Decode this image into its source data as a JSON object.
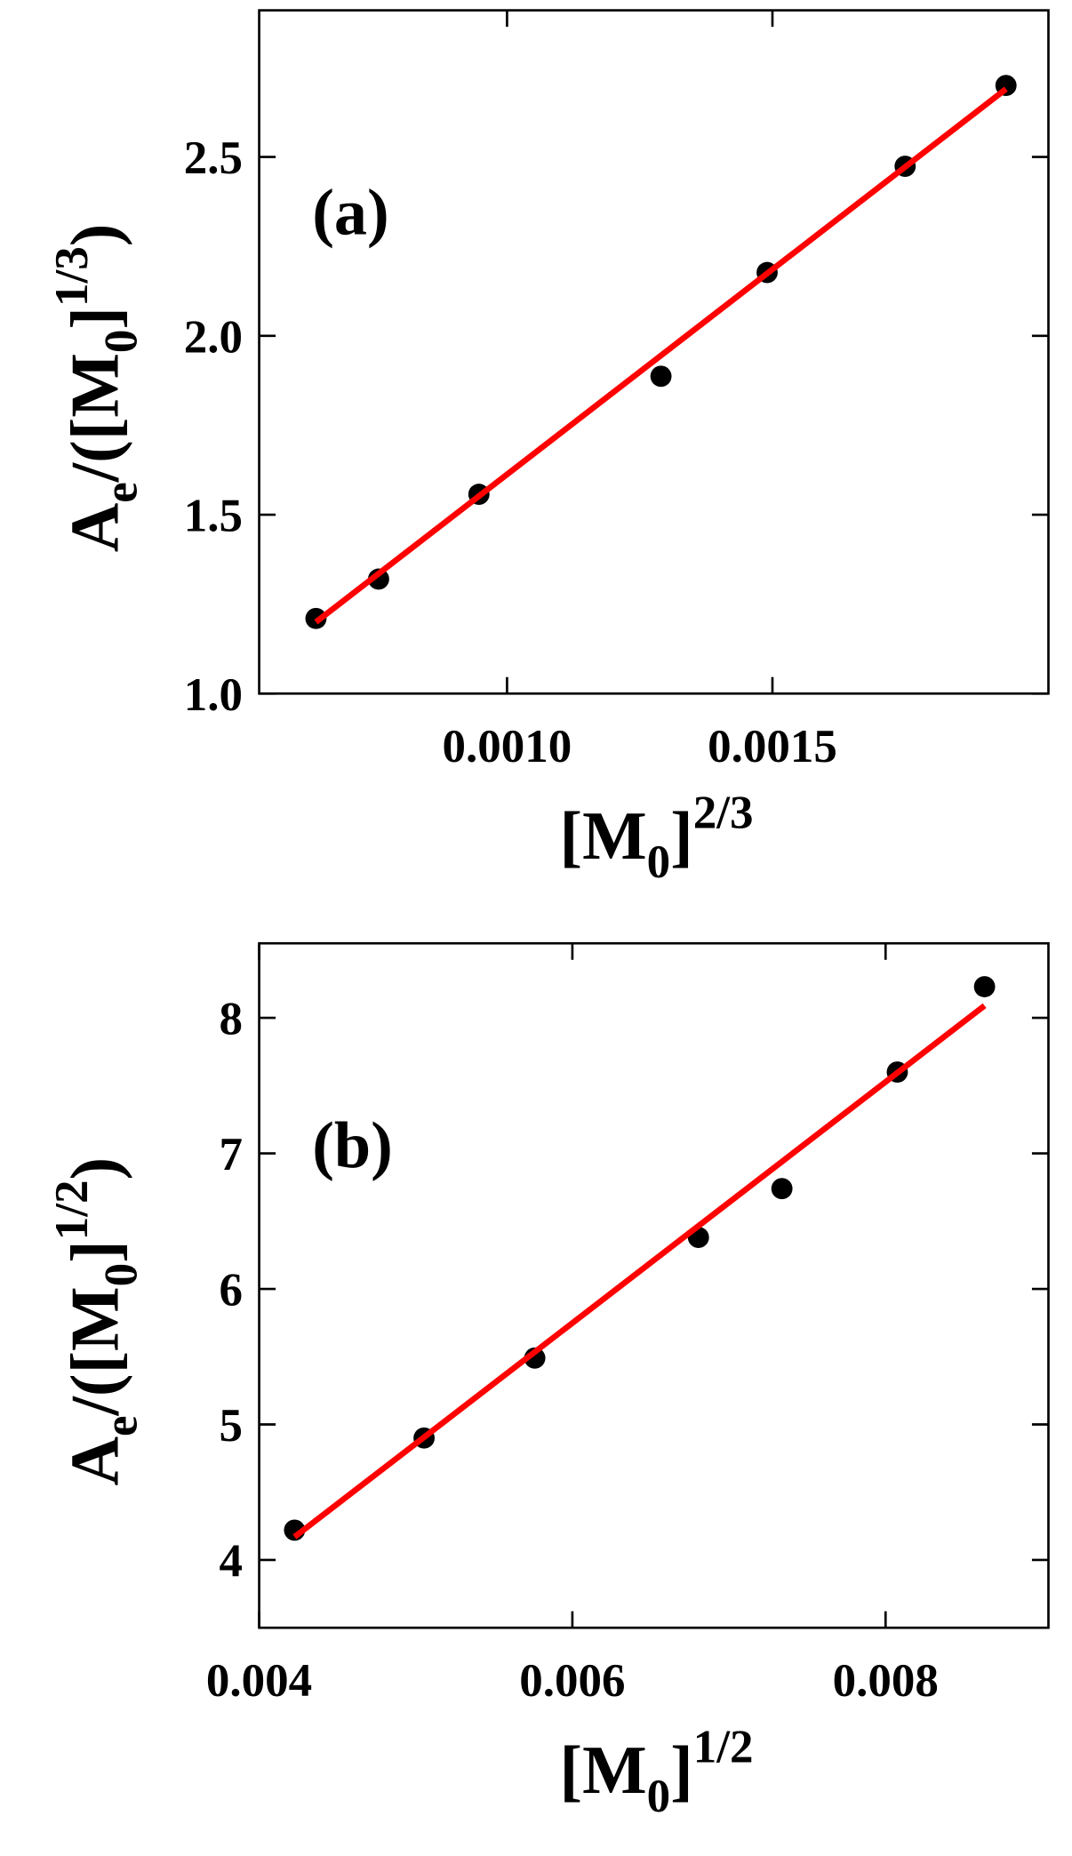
{
  "chart_data": [
    {
      "type": "scatter",
      "panel_label": "(a)",
      "xlabel": [
        "[M",
        "0",
        "]",
        "2/3"
      ],
      "ylabel": [
        "A",
        "e",
        "/([M",
        "0",
        "]",
        "1/3",
        ")"
      ],
      "xlim": [
        0.000533,
        0.00202
      ],
      "ylim": [
        1.0,
        2.91
      ],
      "xticks": [
        {
          "value": 0.001,
          "label": "0.0010"
        },
        {
          "value": 0.0015,
          "label": "0.0015"
        }
      ],
      "yticks": [
        {
          "value": 1.0,
          "label": "1.0"
        },
        {
          "value": 1.5,
          "label": "1.5"
        },
        {
          "value": 2.0,
          "label": "2.0"
        },
        {
          "value": 2.5,
          "label": "2.5"
        }
      ],
      "series": [
        {
          "kind": "points",
          "color": "#000000",
          "x": [
            0.00064,
            0.000758,
            0.000947,
            0.00129,
            0.00149,
            0.00175,
            0.00194
          ],
          "values": [
            1.21,
            1.32,
            1.557,
            1.887,
            2.177,
            2.474,
            2.7
          ]
        },
        {
          "kind": "line",
          "color": "#ff0000",
          "x": [
            0.00064,
            0.00194
          ],
          "values": [
            1.2,
            2.69
          ]
        }
      ]
    },
    {
      "type": "scatter",
      "panel_label": "(b)",
      "xlabel": [
        "[M",
        "0",
        "]",
        "1/2"
      ],
      "ylabel": [
        "A",
        "e",
        "/([M",
        "0",
        "]",
        "1/2",
        ")"
      ],
      "xlim": [
        0.004,
        0.00904
      ],
      "ylim": [
        3.5,
        8.55
      ],
      "xticks": [
        {
          "value": 0.004,
          "label": "0.004"
        },
        {
          "value": 0.006,
          "label": "0.006"
        },
        {
          "value": 0.008,
          "label": "0.008"
        }
      ],
      "yticks": [
        4,
        5,
        6,
        7,
        8
      ],
      "series": [
        {
          "kind": "points",
          "color": "#000000",
          "x": [
            0.004226,
            0.005053,
            0.00576,
            0.006805,
            0.007338,
            0.008075,
            0.008632
          ],
          "values": [
            4.22,
            4.9,
            5.49,
            6.38,
            6.74,
            7.6,
            8.23
          ]
        },
        {
          "kind": "line",
          "color": "#ff0000",
          "x": [
            0.004226,
            0.008632
          ],
          "values": [
            4.17,
            8.09
          ]
        }
      ]
    }
  ]
}
